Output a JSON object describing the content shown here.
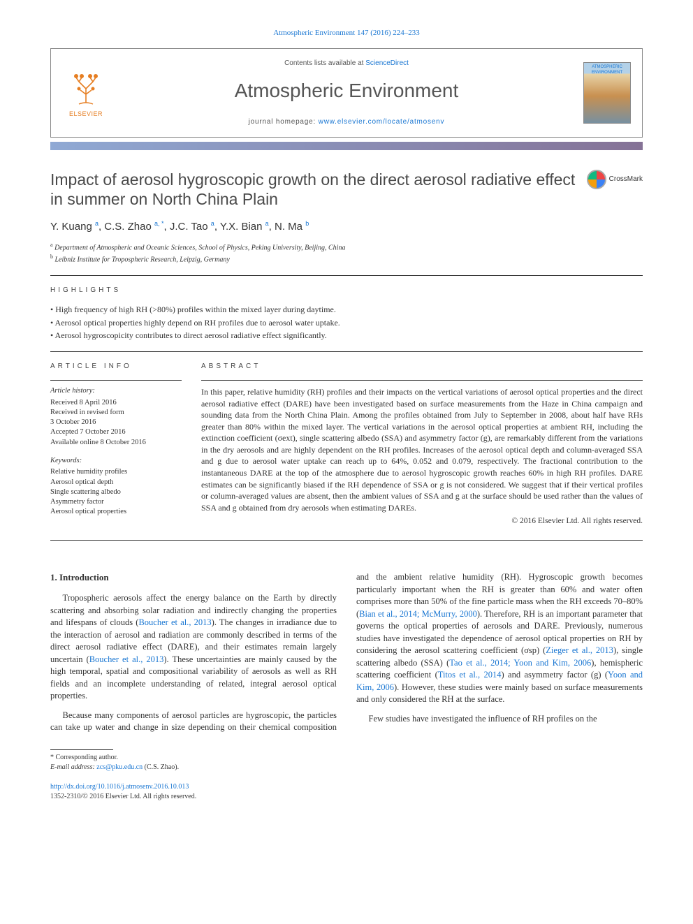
{
  "citation_header": "Atmospheric Environment 147 (2016) 224–233",
  "header": {
    "contents_prefix": "Contents lists available at ",
    "contents_link": "ScienceDirect",
    "journal": "Atmospheric Environment",
    "homepage_prefix": "journal homepage: ",
    "homepage_url": "www.elsevier.com/locate/atmosenv",
    "publisher": "ELSEVIER",
    "cover_label": "ATMOSPHERIC ENVIRONMENT"
  },
  "crossmark_label": "CrossMark",
  "title": "Impact of aerosol hygroscopic growth on the direct aerosol radiative effect in summer on North China Plain",
  "authors_html": "Y. Kuang <sup>a</sup>, C.S. Zhao <sup>a, *</sup>, J.C. Tao <sup>a</sup>, Y.X. Bian <sup>a</sup>, N. Ma <sup>b</sup>",
  "affiliations": [
    {
      "sup": "a",
      "text": "Department of Atmospheric and Oceanic Sciences, School of Physics, Peking University, Beijing, China"
    },
    {
      "sup": "b",
      "text": "Leibniz Institute for Tropospheric Research, Leipzig, Germany"
    }
  ],
  "labels": {
    "highlights": "HIGHLIGHTS",
    "article_info": "ARTICLE INFO",
    "abstract": "ABSTRACT",
    "history": "Article history:",
    "keywords": "Keywords:"
  },
  "highlights": [
    "High frequency of high RH (>80%) profiles within the mixed layer during daytime.",
    "Aerosol optical properties highly depend on RH profiles due to aerosol water uptake.",
    "Aerosol hygroscopicity contributes to direct aerosol radiative effect significantly."
  ],
  "history": [
    "Received 8 April 2016",
    "Received in revised form",
    "3 October 2016",
    "Accepted 7 October 2016",
    "Available online 8 October 2016"
  ],
  "keywords": [
    "Relative humidity profiles",
    "Aerosol optical depth",
    "Single scattering albedo",
    "Asymmetry factor",
    "Aerosol optical properties"
  ],
  "abstract": "In this paper, relative humidity (RH) profiles and their impacts on the vertical variations of aerosol optical properties and the direct aerosol radiative effect (DARE) have been investigated based on surface measurements from the Haze in China campaign and sounding data from the North China Plain. Among the profiles obtained from July to September in 2008, about half have RHs greater than 80% within the mixed layer. The vertical variations in the aerosol optical properties at ambient RH, including the extinction coefficient (σext), single scattering albedo (SSA) and asymmetry factor (g), are remarkably different from the variations in the dry aerosols and are highly dependent on the RH profiles. Increases of the aerosol optical depth and column-averaged SSA and g due to aerosol water uptake can reach up to 64%, 0.052 and 0.079, respectively. The fractional contribution to the instantaneous DARE at the top of the atmosphere due to aerosol hygroscopic growth reaches 60% in high RH profiles. DARE estimates can be significantly biased if the RH dependence of SSA or g is not considered. We suggest that if their vertical profiles or column-averaged values are absent, then the ambient values of SSA and g at the surface should be used rather than the values of SSA and g obtained from dry aerosols when estimating DAREs.",
  "copyright": "© 2016 Elsevier Ltd. All rights reserved.",
  "intro_heading": "1. Introduction",
  "intro": {
    "p1_a": "Tropospheric aerosols affect the energy balance on the Earth by directly scattering and absorbing solar radiation and indirectly changing the properties and lifespans of clouds (",
    "p1_link1": "Boucher et al., 2013",
    "p1_b": "). The changes in irradiance due to the interaction of aerosol and radiation are commonly described in terms of the direct aerosol radiative effect (DARE), and their estimates remain largely uncertain (",
    "p1_link2": "Boucher et al., 2013",
    "p1_c": "). These uncertainties are mainly caused by the high temporal, spatial and compositional variability of aerosols as well as RH fields and an incomplete understanding of related, integral aerosol optical properties.",
    "p2_a": "Because many components of aerosol particles are hygroscopic, the particles can take up water and change in size depending on their chemical composition and the ambient relative humidity (RH). Hygroscopic growth becomes particularly important when the RH is greater than 60% and water often comprises more than 50% of the fine particle mass when the RH exceeds 70–80% (",
    "p2_link1": "Bian et al., 2014; McMurry, 2000",
    "p2_b": "). Therefore, RH is an important parameter that governs the optical properties of aerosols and DARE. Previously, numerous studies have investigated the dependence of aerosol optical properties on RH by considering the aerosol scattering coefficient (σsp) (",
    "p2_link2": "Zieger et al., 2013",
    "p2_c": "), single scattering albedo (SSA) (",
    "p2_link3": "Tao et al., 2014; Yoon and Kim, 2006",
    "p2_d": "), hemispheric scattering coefficient (",
    "p2_link4": "Titos et al., 2014",
    "p2_e": ") and asymmetry factor (g) (",
    "p2_link5": "Yoon and Kim, 2006",
    "p2_f": "). However, these studies were mainly based on surface measurements and only considered the RH at the surface.",
    "p3": "Few studies have investigated the influence of RH profiles on the"
  },
  "footer": {
    "corr_label": "* Corresponding author.",
    "email_label": "E-mail address: ",
    "email": "zcs@pku.edu.cn",
    "email_who": " (C.S. Zhao)."
  },
  "doi": {
    "url": "http://dx.doi.org/10.1016/j.atmosenv.2016.10.013",
    "issn_line": "1352-2310/© 2016 Elsevier Ltd. All rights reserved."
  }
}
